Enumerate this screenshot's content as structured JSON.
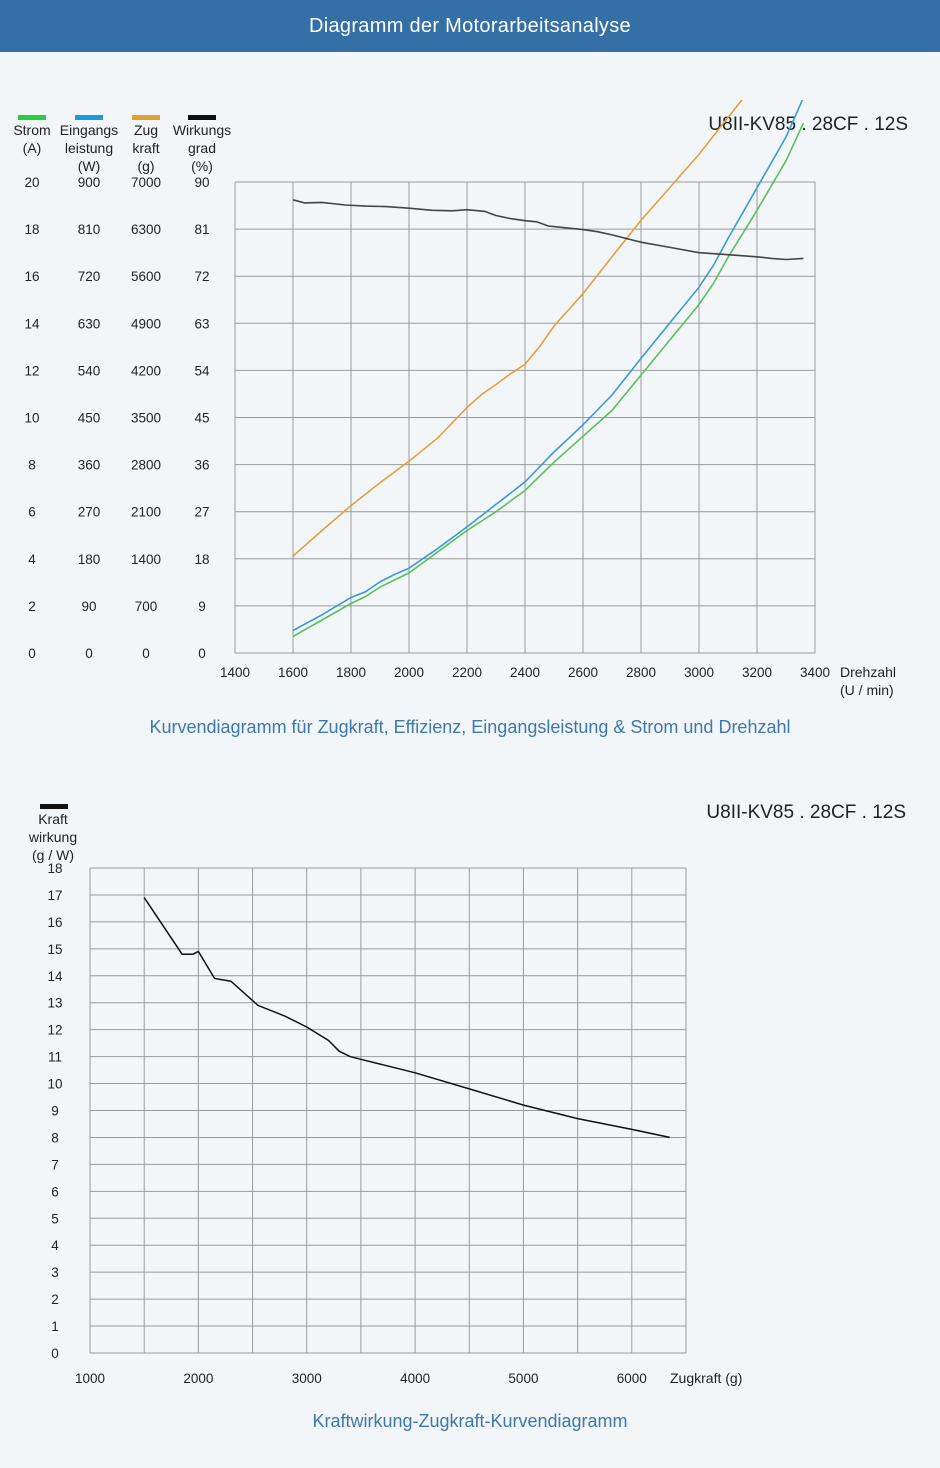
{
  "header": {
    "title": "Diagramm der Motorarbeitsanalyse"
  },
  "chart1": {
    "model": "U8II-KV85 . 28CF . 12S",
    "caption": "Kurvendiagramm für Zugkraft, Effizienz, Eingangsleistung &  Strom und Drehzahl"
  },
  "chart2": {
    "model": "U8II-KV85 . 28CF . 12S",
    "caption": "Kraftwirkung-Zugkraft-Kurvendiagramm"
  },
  "chart_data": [
    {
      "type": "line",
      "title": "U8II-KV85 . 28CF . 12S",
      "xlabel": "Drehzahl (U / min)",
      "xlim": [
        1400,
        3400
      ],
      "x_ticks": [
        "1400",
        "1600",
        "1800",
        "2000",
        "2200",
        "2400",
        "2600",
        "2800",
        "3000",
        "3200",
        "3400"
      ],
      "grid": true,
      "axes": [
        {
          "name": "Strom",
          "unit": "(A)",
          "label_lines": [
            "Strom",
            "(A)"
          ],
          "color": "#2ecc40",
          "ticks": [
            "0",
            "2",
            "4",
            "6",
            "8",
            "10",
            "12",
            "14",
            "16",
            "18",
            "20"
          ],
          "max": 20
        },
        {
          "name": "Eingangsleistung",
          "unit": "(W)",
          "label_lines": [
            "Eingangs",
            "leistung",
            "(W)"
          ],
          "color": "#1e9be0",
          "ticks": [
            "0",
            "90",
            "180",
            "270",
            "360",
            "450",
            "540",
            "630",
            "720",
            "810",
            "900"
          ],
          "max": 900
        },
        {
          "name": "Zugkraft",
          "unit": "(g)",
          "label_lines": [
            "Zug",
            "kraft",
            "(g)"
          ],
          "color": "#e0a030",
          "ticks": [
            "0",
            "700",
            "1400",
            "2100",
            "2800",
            "3500",
            "4200",
            "4900",
            "5600",
            "6300",
            "7000"
          ],
          "max": 7000
        },
        {
          "name": "Wirkungsgrad",
          "unit": "(%)",
          "label_lines": [
            "Wirkungs",
            "grad",
            "(%)"
          ],
          "color": "#111111",
          "ticks": [
            "0",
            "9",
            "18",
            "27",
            "36",
            "45",
            "54",
            "63",
            "72",
            "81",
            "90"
          ],
          "max": 90
        }
      ],
      "series": [
        {
          "name": "Strom (A)",
          "axis": 0,
          "color": "#5cbf5c",
          "x": [
            1600,
            1700,
            1800,
            1850,
            1900,
            1950,
            2000,
            2100,
            2200,
            2300,
            2400,
            2500,
            2600,
            2700,
            2800,
            2900,
            3000,
            3050,
            3100,
            3200,
            3300,
            3360
          ],
          "y": [
            0.7,
            1.4,
            2.1,
            2.4,
            2.8,
            3.1,
            3.4,
            4.3,
            5.2,
            6.0,
            6.9,
            8.1,
            9.2,
            10.3,
            11.8,
            13.3,
            14.8,
            15.7,
            16.8,
            18.8,
            20.9,
            22.5
          ]
        },
        {
          "name": "Eingangsleistung (W)",
          "axis": 1,
          "color": "#3a9ad6",
          "x": [
            1600,
            1700,
            1800,
            1850,
            1900,
            1950,
            2000,
            2100,
            2200,
            2300,
            2400,
            2500,
            2600,
            2700,
            2800,
            2900,
            3000,
            3050,
            3100,
            3200,
            3300,
            3360
          ],
          "y": [
            43,
            73,
            106,
            117,
            136,
            150,
            162,
            200,
            241,
            284,
            327,
            384,
            436,
            493,
            563,
            631,
            699,
            741,
            792,
            889,
            986,
            1061
          ]
        },
        {
          "name": "Zugkraft (g)",
          "axis": 2,
          "color": "#e0a040",
          "x": [
            1600,
            1700,
            1800,
            1900,
            2000,
            2100,
            2200,
            2250,
            2300,
            2350,
            2400,
            2450,
            2500,
            2600,
            2700,
            2800,
            2900,
            3000,
            3100,
            3200,
            3300,
            3360
          ],
          "y": [
            1440,
            1820,
            2190,
            2530,
            2850,
            3200,
            3650,
            3840,
            3990,
            4150,
            4290,
            4550,
            4860,
            5340,
            5890,
            6430,
            6920,
            7410,
            7960,
            8500,
            8960,
            9260
          ]
        },
        {
          "name": "Wirkungsgrad (%)",
          "axis": 3,
          "color": "#444444",
          "x": [
            1600,
            1640,
            1700,
            1780,
            1850,
            1920,
            2000,
            2080,
            2150,
            2200,
            2260,
            2300,
            2350,
            2400,
            2440,
            2480,
            2550,
            2600,
            2650,
            2700,
            2800,
            2900,
            3000,
            3050,
            3100,
            3200,
            3250,
            3300,
            3360
          ],
          "y": [
            86.6,
            86.0,
            86.1,
            85.6,
            85.4,
            85.3,
            85.0,
            84.6,
            84.5,
            84.7,
            84.4,
            83.6,
            83.0,
            82.6,
            82.4,
            81.6,
            81.2,
            80.9,
            80.5,
            79.9,
            78.5,
            77.5,
            76.5,
            76.3,
            76.1,
            75.7,
            75.4,
            75.2,
            75.4
          ]
        }
      ]
    },
    {
      "type": "line",
      "title": "U8II-KV85 . 28CF . 12S",
      "xlabel": "Zugkraft (g)",
      "ylabel_lines": [
        "Kraft",
        "wirkung",
        "(g / W)"
      ],
      "xlim": [
        1000,
        6500
      ],
      "ylim": [
        0,
        18
      ],
      "x_ticks": [
        "1000",
        "2000",
        "3000",
        "4000",
        "5000",
        "6000"
      ],
      "y_ticks": [
        "0",
        "1",
        "2",
        "3",
        "4",
        "5",
        "6",
        "7",
        "8",
        "9",
        "10",
        "11",
        "12",
        "13",
        "14",
        "15",
        "16",
        "17",
        "18"
      ],
      "grid": true,
      "series": [
        {
          "name": "Kraftwirkung (g / W)",
          "color": "#111111",
          "x": [
            1500,
            1850,
            1950,
            2000,
            2150,
            2300,
            2550,
            2800,
            3000,
            3200,
            3300,
            3400,
            3500,
            3700,
            4000,
            4500,
            5000,
            5500,
            6000,
            6350
          ],
          "y": [
            16.9,
            14.8,
            14.8,
            14.9,
            13.9,
            13.8,
            12.9,
            12.5,
            12.1,
            11.6,
            11.2,
            11.0,
            10.9,
            10.7,
            10.4,
            9.8,
            9.2,
            8.7,
            8.3,
            8.0
          ]
        }
      ]
    }
  ]
}
